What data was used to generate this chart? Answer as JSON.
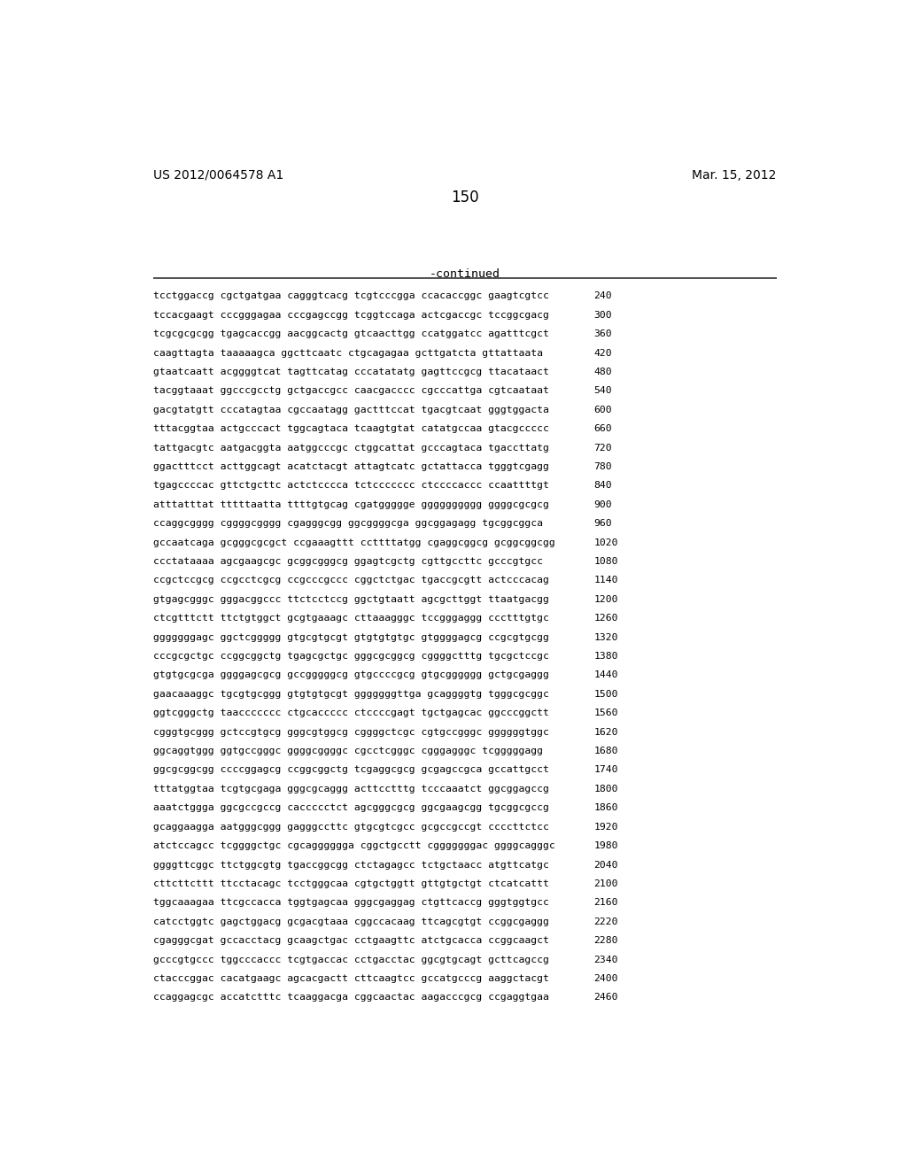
{
  "header_left": "US 2012/0064578 A1",
  "header_right": "Mar. 15, 2012",
  "page_number": "150",
  "continued_label": "-continued",
  "background_color": "#ffffff",
  "text_color": "#000000",
  "sequence_lines": [
    [
      "tcctggaccg cgctgatgaa cagggtcacg tcgtcccgga ccacaccggc gaagtcgtcc",
      "240"
    ],
    [
      "tccacgaagt cccgggagaa cccgagccgg tcggtccaga actcgaccgc tccggcgacg",
      "300"
    ],
    [
      "tcgcgcgcgg tgagcaccgg aacggcactg gtcaacttgg ccatggatcc agatttcgct",
      "360"
    ],
    [
      "caagttagta taaaaagca ggcttcaatc ctgcagagaa gcttgatcta gttattaata",
      "420"
    ],
    [
      "gtaatcaatt acggggtcat tagttcatag cccatatatg gagttccgcg ttacataact",
      "480"
    ],
    [
      "tacggtaaat ggcccgcctg gctgaccgcc caacgacccc cgcccattga cgtcaataat",
      "540"
    ],
    [
      "gacgtatgtt cccatagtaa cgccaatagg gactttccat tgacgtcaat gggtggacta",
      "600"
    ],
    [
      "tttacggtaa actgcccact tggcagtaca tcaagtgtat catatgccaa gtacgccccc",
      "660"
    ],
    [
      "tattgacgtc aatgacggta aatggcccgc ctggcattat gcccagtaca tgaccttatg",
      "720"
    ],
    [
      "ggactttcct acttggcagt acatctacgt attagtcatc gctattacca tgggtcgagg",
      "780"
    ],
    [
      "tgagccccac gttctgcttc actctcccca tctccccccc ctccccaccc ccaattttgt",
      "840"
    ],
    [
      "atttatttat tttttaatta ttttgtgcag cgatggggge gggggggggg ggggcgcgcg",
      "900"
    ],
    [
      "ccaggcgggg cggggcgggg cgagggcgg ggcggggcga ggcggagagg tgcggcggca",
      "960"
    ],
    [
      "gccaatcaga gcgggcgcgct ccgaaagttt ccttttatgg cgaggcggcg gcggcggcgg",
      "1020"
    ],
    [
      "ccctataaaa agcgaagcgc gcggcgggcg ggagtcgctg cgttgccttc gcccgtgcc",
      "1080"
    ],
    [
      "ccgctccgcg ccgcctcgcg ccgcccgccc cggctctgac tgaccgcgtt actcccacag",
      "1140"
    ],
    [
      "gtgagcgggc gggacggccc ttctcctccg ggctgtaatt agcgcttggt ttaatgacgg",
      "1200"
    ],
    [
      "ctcgtttctt ttctgtggct gcgtgaaagc cttaaagggc tccgggaggg ccctttgtgc",
      "1260"
    ],
    [
      "gggggggagc ggctcggggg gtgcgtgcgt gtgtgtgtgc gtggggagcg ccgcgtgcgg",
      "1320"
    ],
    [
      "cccgcgctgc ccggcggctg tgagcgctgc gggcgcggcg cggggctttg tgcgctccgc",
      "1380"
    ],
    [
      "gtgtgcgcga ggggagcgcg gccgggggcg gtgccccgcg gtgcgggggg gctgcgaggg",
      "1440"
    ],
    [
      "gaacaaaggc tgcgtgcggg gtgtgtgcgt gggggggttga gcaggggtg tgggcgcggc",
      "1500"
    ],
    [
      "ggtcgggctg taaccccccc ctgcaccccc ctccccgagt tgctgagcac ggcccggctt",
      "1560"
    ],
    [
      "cgggtgcggg gctccgtgcg gggcgtggcg cggggctcgc cgtgccgggc ggggggtggc",
      "1620"
    ],
    [
      "ggcaggtggg ggtgccgggc ggggcggggc cgcctcgggc cgggagggc tcgggggagg",
      "1680"
    ],
    [
      "ggcgcggcgg ccccggagcg ccggcggctg tcgaggcgcg gcgagccgca gccattgcct",
      "1740"
    ],
    [
      "tttatggtaa tcgtgcgaga gggcgcaggg acttcctttg tcccaaatct ggcggagccg",
      "1800"
    ],
    [
      "aaatctggga ggcgccgccg caccccctct agcgggcgcg ggcgaagcgg tgcggcgccg",
      "1860"
    ],
    [
      "gcaggaagga aatgggcggg gagggccttc gtgcgtcgcc gcgccgccgt ccccttctcc",
      "1920"
    ],
    [
      "atctccagcc tcggggctgc cgcagggggga cggctgcctt cgggggggac ggggcagggc",
      "1980"
    ],
    [
      "ggggttcggc ttctggcgtg tgaccggcgg ctctagagcc tctgctaacc atgttcatgc",
      "2040"
    ],
    [
      "cttcttcttt ttcctacagc tcctgggcaa cgtgctggtt gttgtgctgt ctcatcattt",
      "2100"
    ],
    [
      "tggcaaagaa ttcgccacca tggtgagcaa gggcgaggag ctgttcaccg gggtggtgcc",
      "2160"
    ],
    [
      "catcctggtc gagctggacg gcgacgtaaa cggccacaag ttcagcgtgt ccggcgaggg",
      "2220"
    ],
    [
      "cgagggcgat gccacctacg gcaagctgac cctgaagttc atctgcacca ccggcaagct",
      "2280"
    ],
    [
      "gcccgtgccc tggcccaccc tcgtgaccac cctgacctac ggcgtgcagt gcttcagccg",
      "2340"
    ],
    [
      "ctacccggac cacatgaagc agcacgactt cttcaagtcc gccatgcccg aaggctacgt",
      "2400"
    ],
    [
      "ccaggagcgc accatctttc tcaaggacga cggcaactac aagacccgcg ccgaggtgaa",
      "2460"
    ]
  ]
}
